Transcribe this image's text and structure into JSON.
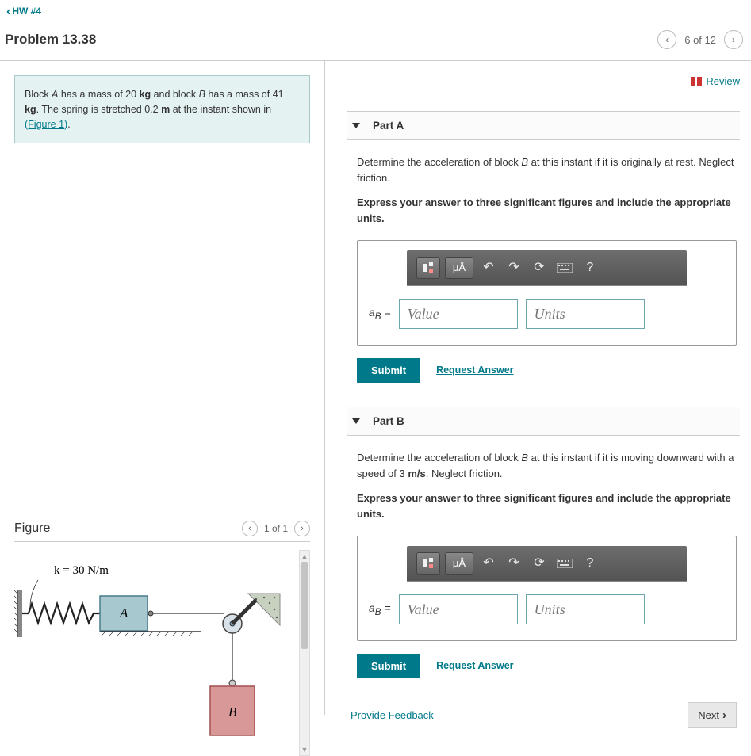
{
  "nav": {
    "back_label": "HW #4"
  },
  "header": {
    "problem_title": "Problem 13.38",
    "pager_text": "6 of 12"
  },
  "problem_statement": {
    "text_html": "Block <i>A</i> has a mass of 20 <b>kg</b> and block <i>B</i> has a mass of 41 <b>kg</b>. The spring is stretched 0.2 <b>m</b> at the instant shown in ",
    "figure_link_text": "(Figure 1)",
    "text_after": "."
  },
  "figure": {
    "title": "Figure",
    "pager": "1 of 1",
    "spring_label": "k = 30 N/m",
    "block_a_label": "A",
    "block_b_label": "B",
    "colors": {
      "block_a_fill": "#a8c8d0",
      "block_a_stroke": "#4a7a8a",
      "block_b_fill": "#d89898",
      "block_b_stroke": "#a05050",
      "wall": "#888",
      "ground": "#666",
      "ramp_fill": "#c8d0c0"
    }
  },
  "review_link": "Review",
  "parts": [
    {
      "label": "Part A",
      "prompt": "Determine the acceleration of block <i>B</i> at this instant if it is originally at rest. Neglect friction.",
      "instruction": "Express your answer to three significant figures and include the appropriate units.",
      "var_label": "a",
      "var_sub": "B",
      "value_placeholder": "Value",
      "units_placeholder": "Units",
      "submit": "Submit",
      "request": "Request Answer",
      "toolbar": {
        "units_btn": "μÅ",
        "help": "?"
      }
    },
    {
      "label": "Part B",
      "prompt": "Determine the acceleration of block <i>B</i> at this instant if it is moving downward with a speed of 3 <b>m/s</b>. Neglect friction.",
      "instruction": "Express your answer to three significant figures and include the appropriate units.",
      "var_label": "a",
      "var_sub": "B",
      "value_placeholder": "Value",
      "units_placeholder": "Units",
      "submit": "Submit",
      "request": "Request Answer",
      "toolbar": {
        "units_btn": "μÅ",
        "help": "?"
      }
    }
  ],
  "footer": {
    "feedback": "Provide Feedback",
    "next": "Next"
  }
}
